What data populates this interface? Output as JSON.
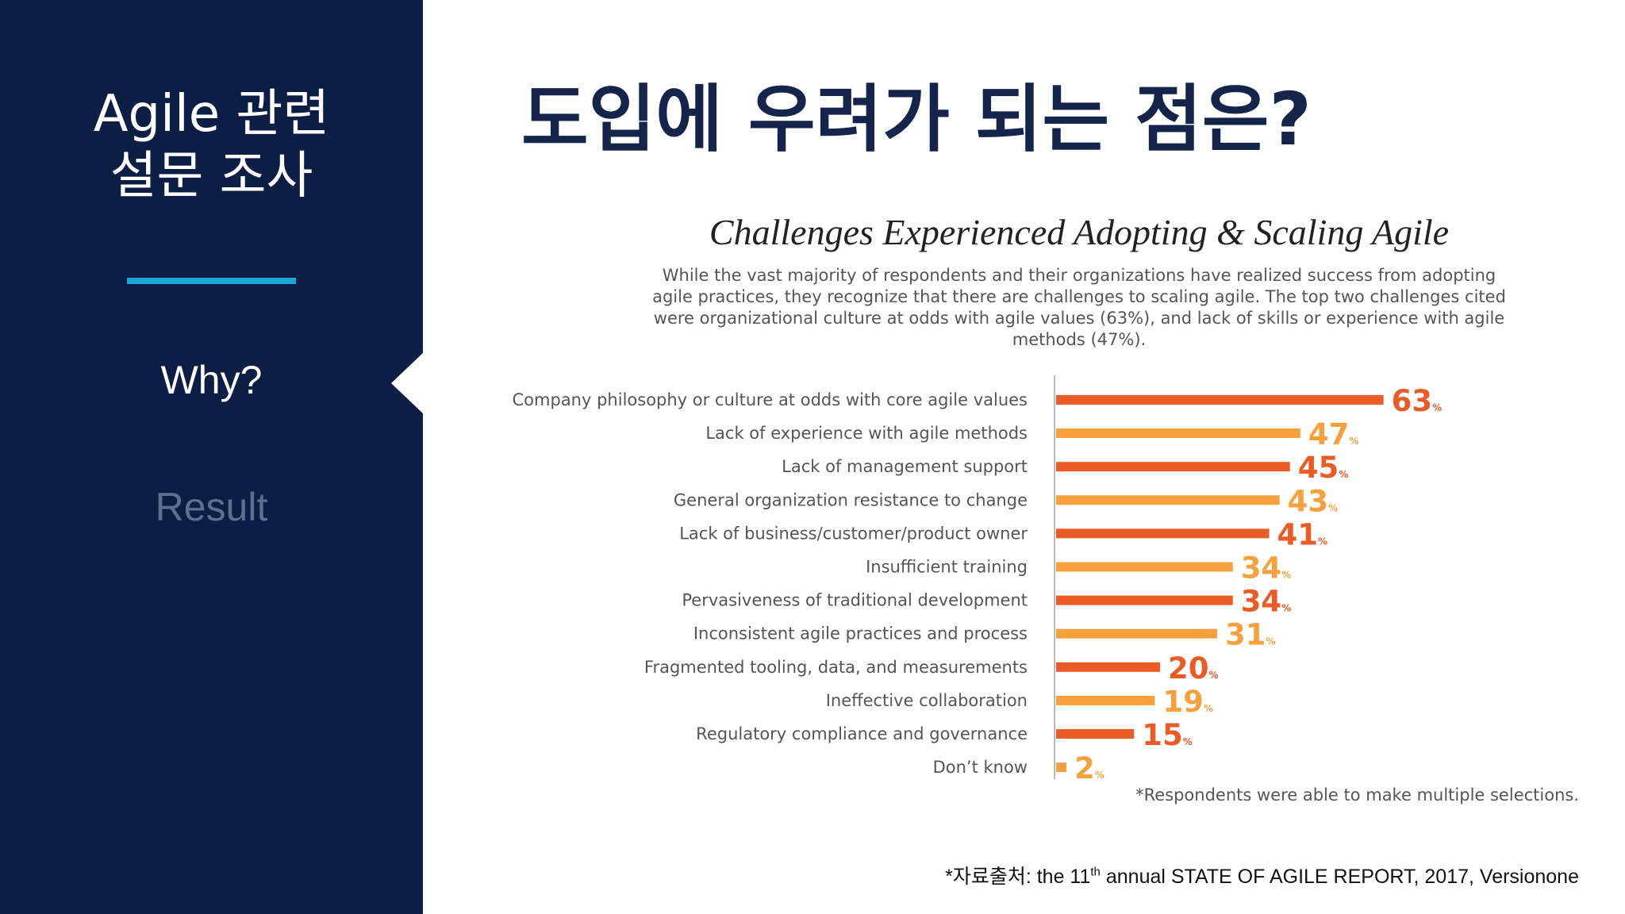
{
  "sidebar": {
    "title_line1": "Agile 관련",
    "title_line2": "설문 조사",
    "nav": [
      {
        "label": "Why?",
        "active": true
      },
      {
        "label": "Result",
        "active": false
      }
    ]
  },
  "main": {
    "title": "도입에 우려가 되는 점은?"
  },
  "chart_data": {
    "type": "bar",
    "orientation": "horizontal",
    "title": "Challenges Experienced Adopting & Scaling Agile",
    "subtitle": "While the vast majority of respondents and their organizations have realized success from adopting agile practices, they recognize that there are challenges to scaling agile. The top two challenges cited were organizational culture at odds with agile values (63%), and lack of skills or experience with agile methods (47%).",
    "categories": [
      "Company philosophy or culture at odds with core agile values",
      "Lack of experience with agile methods",
      "Lack of management support",
      "General organization resistance to change",
      "Lack of business/customer/product owner",
      "Insufficient training",
      "Pervasiveness of traditional development",
      "Inconsistent agile practices and process",
      "Fragmented tooling, data, and measurements",
      "Ineffective collaboration",
      "Regulatory compliance and governance",
      "Don’t know"
    ],
    "values": [
      63,
      47,
      45,
      43,
      41,
      34,
      34,
      31,
      20,
      19,
      15,
      2
    ],
    "value_suffix": "%",
    "bar_colors": [
      "#ea5b25",
      "#f6a13e"
    ],
    "note": "*Respondents were able to make multiple selections.",
    "xlabel": "",
    "ylabel": ""
  },
  "footer": {
    "source_prefix": "*자료출처: the 11",
    "source_sup": "th",
    "source_suffix": " annual STATE OF AGILE REPORT, 2017, Versionone"
  }
}
